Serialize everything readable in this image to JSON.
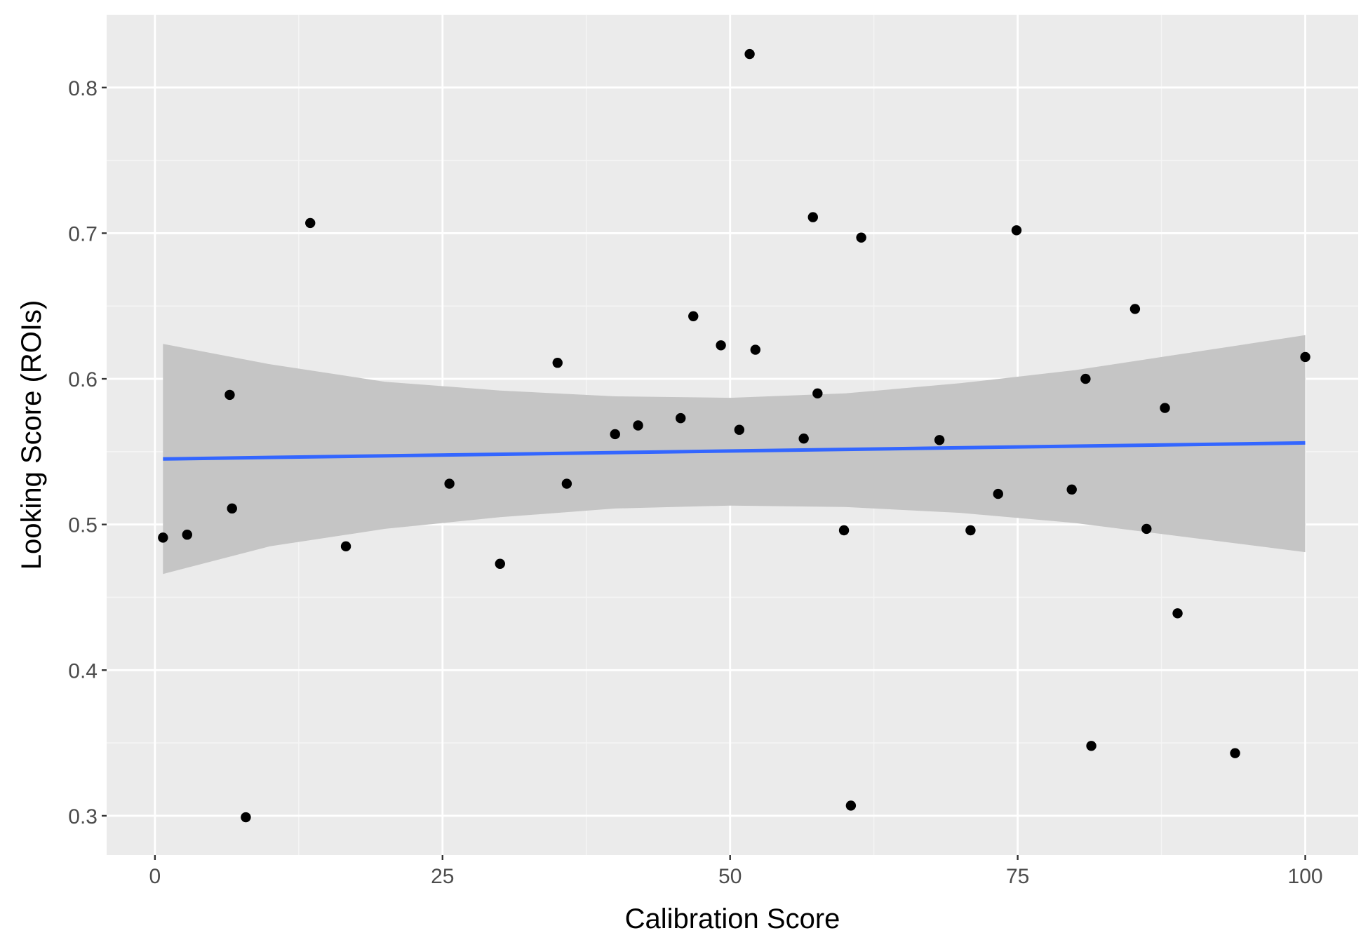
{
  "chart_data": {
    "type": "scatter",
    "title": "",
    "xlabel": "Calibration Score",
    "ylabel": "Looking Score (ROIs)",
    "xlim": [
      -4.2,
      104.6
    ],
    "ylim": [
      0.273,
      0.85
    ],
    "x_ticks": [
      0,
      25,
      50,
      75,
      100
    ],
    "x_tick_labels": [
      "0",
      "25",
      "50",
      "75",
      "100"
    ],
    "y_ticks": [
      0.3,
      0.4,
      0.5,
      0.6,
      0.7,
      0.8
    ],
    "y_tick_labels": [
      "0.3",
      "0.4",
      "0.5",
      "0.6",
      "0.7",
      "0.8"
    ],
    "grid": true,
    "legend": "none",
    "points": [
      {
        "x": 0.7,
        "y": 0.491
      },
      {
        "x": 2.8,
        "y": 0.493
      },
      {
        "x": 6.5,
        "y": 0.589
      },
      {
        "x": 6.7,
        "y": 0.511
      },
      {
        "x": 7.9,
        "y": 0.299
      },
      {
        "x": 13.5,
        "y": 0.707
      },
      {
        "x": 16.6,
        "y": 0.485
      },
      {
        "x": 25.6,
        "y": 0.528
      },
      {
        "x": 30.0,
        "y": 0.473
      },
      {
        "x": 35.0,
        "y": 0.611
      },
      {
        "x": 35.8,
        "y": 0.528
      },
      {
        "x": 40.0,
        "y": 0.562
      },
      {
        "x": 42.0,
        "y": 0.568
      },
      {
        "x": 45.7,
        "y": 0.573
      },
      {
        "x": 46.8,
        "y": 0.643
      },
      {
        "x": 49.2,
        "y": 0.623
      },
      {
        "x": 50.8,
        "y": 0.565
      },
      {
        "x": 51.7,
        "y": 0.823
      },
      {
        "x": 52.2,
        "y": 0.62
      },
      {
        "x": 56.4,
        "y": 0.559
      },
      {
        "x": 57.2,
        "y": 0.711
      },
      {
        "x": 57.6,
        "y": 0.59
      },
      {
        "x": 59.9,
        "y": 0.496
      },
      {
        "x": 60.5,
        "y": 0.307
      },
      {
        "x": 61.4,
        "y": 0.697
      },
      {
        "x": 68.2,
        "y": 0.558
      },
      {
        "x": 70.9,
        "y": 0.496
      },
      {
        "x": 73.3,
        "y": 0.521
      },
      {
        "x": 74.9,
        "y": 0.702
      },
      {
        "x": 79.7,
        "y": 0.524
      },
      {
        "x": 80.9,
        "y": 0.6
      },
      {
        "x": 81.4,
        "y": 0.348
      },
      {
        "x": 85.2,
        "y": 0.648
      },
      {
        "x": 86.2,
        "y": 0.497
      },
      {
        "x": 87.8,
        "y": 0.58
      },
      {
        "x": 88.9,
        "y": 0.439
      },
      {
        "x": 93.9,
        "y": 0.343
      },
      {
        "x": 100.0,
        "y": 0.615
      }
    ],
    "fit_line": {
      "method": "linear",
      "x": [
        0.7,
        100.0
      ],
      "y": [
        0.545,
        0.556
      ]
    },
    "confidence_band": {
      "x": [
        0.7,
        10,
        20,
        30,
        40,
        50,
        60,
        70,
        80,
        90,
        100.0
      ],
      "lower": [
        0.466,
        0.485,
        0.497,
        0.505,
        0.511,
        0.513,
        0.512,
        0.508,
        0.501,
        0.491,
        0.481
      ],
      "upper": [
        0.624,
        0.61,
        0.598,
        0.592,
        0.588,
        0.587,
        0.59,
        0.597,
        0.606,
        0.618,
        0.63
      ]
    },
    "colors": {
      "panel_background": "#EBEBEB",
      "major_grid": "#FFFFFF",
      "minor_grid": "#F5F5F5",
      "points": "#000000",
      "fit_line": "#3366FF",
      "confidence_band": "#C5C5C5",
      "tick_label": "#4D4D4D",
      "axis_title": "#000000"
    }
  }
}
